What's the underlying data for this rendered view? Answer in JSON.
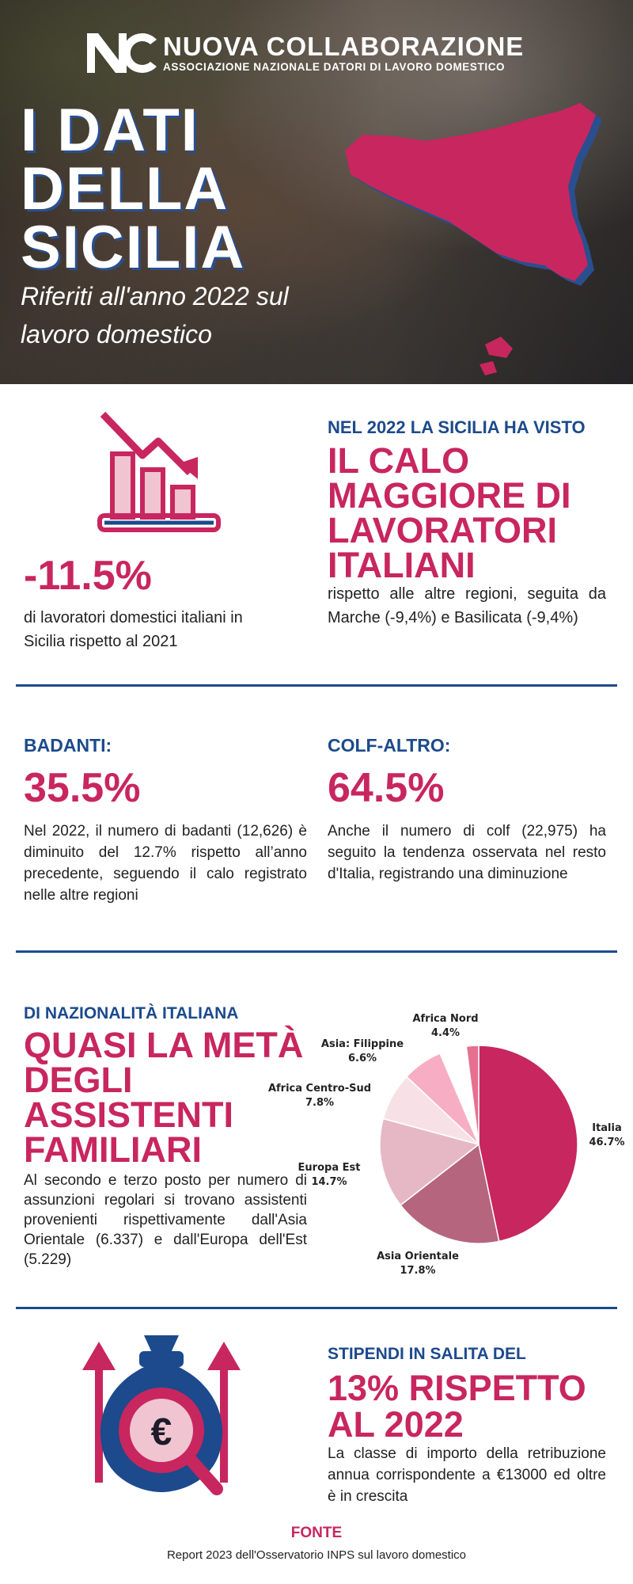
{
  "header": {
    "brand_name": "NUOVA COLLABORAZIONE",
    "brand_sub": "ASSOCIAZIONE NAZIONALE DATORI DI LAVORO DOMESTICO",
    "title_lines": [
      "I DATI",
      "DELLA",
      "SICILIA"
    ],
    "subtitle": "Riferiti all'anno 2022 sul lavoro domestico"
  },
  "section1": {
    "stat": "-11.5%",
    "stat_desc": "di lavoratori domestici italiani in Sicilia rispetto al 2021",
    "kicker": "NEL 2022 LA SICILIA HA VISTO",
    "headline_lines": [
      "IL CALO",
      "MAGGIORE DI",
      "LAVORATORI",
      "ITALIANI"
    ],
    "body": "rispetto alle altre regioni, seguita da Marche (-9,4%) e Basilicata (-9,4%)"
  },
  "section2": {
    "left_kicker": "BADANTI:",
    "left_stat": "35.5%",
    "left_body": "Nel 2022, il numero di badanti (12,626) è diminuito del 12.7% rispetto all’anno precedente, seguendo il calo registrato nelle altre regioni",
    "right_kicker": "COLF-ALTRO:",
    "right_stat": "64.5%",
    "right_body": "Anche il numero di colf (22,975) ha seguito la tendenza osservata nel resto d'Italia, registrando una diminuzione"
  },
  "section3": {
    "kicker": "DI NAZIONALITÀ ITALIANA",
    "headline_lines": [
      "QUASI LA METÀ",
      "DEGLI",
      "ASSISTENTI",
      "FAMILIARI"
    ],
    "body": "Al secondo e terzo posto per numero di assunzioni regolari si trovano assistenti provenienti rispettivamente dall'Asia Orientale (6.337) e dall'Europa dell'Est (5.229)"
  },
  "chart_data": {
    "type": "pie",
    "slices": [
      {
        "label": "Italia",
        "value": 46.7,
        "value_label": "46.7%",
        "color": "#c8265e"
      },
      {
        "label": "Asia Orientale",
        "value": 17.8,
        "value_label": "17.8%",
        "color": "#b5657e"
      },
      {
        "label": "Europa Est",
        "value": 14.7,
        "value_label": "14.7%",
        "color": "#e6b8c5"
      },
      {
        "label": "Africa Centro-Sud",
        "value": 7.8,
        "value_label": "7.8%",
        "color": "#f7e1e7"
      },
      {
        "label": "Asia: Filippine",
        "value": 6.6,
        "value_label": "6.6%",
        "color": "#f7aec4"
      },
      {
        "label": "Africa Nord",
        "value": 4.4,
        "value_label": "4.4%",
        "color": "#ffffff"
      },
      {
        "label": "",
        "value": 2.0,
        "value_label": "",
        "color": "#e6708f"
      }
    ]
  },
  "section4": {
    "kicker": "STIPENDI IN SALITA DEL",
    "headline_lines": [
      "13% RISPETTO",
      "AL 2022"
    ],
    "body": "La classe di importo della retribuzione annua corrispondente a €13000 ed oltre è in crescita"
  },
  "footer": {
    "label": "FONTE",
    "source": "Report 2023 dell'Osservatorio INPS sul lavoro domestico"
  },
  "colors": {
    "pink": "#c8265e",
    "blue": "#1c4a8c"
  },
  "icons": [
    "nc-logo-icon",
    "sicily-map-icon",
    "declining-bar-chart-icon",
    "euro-money-bag-icon"
  ]
}
